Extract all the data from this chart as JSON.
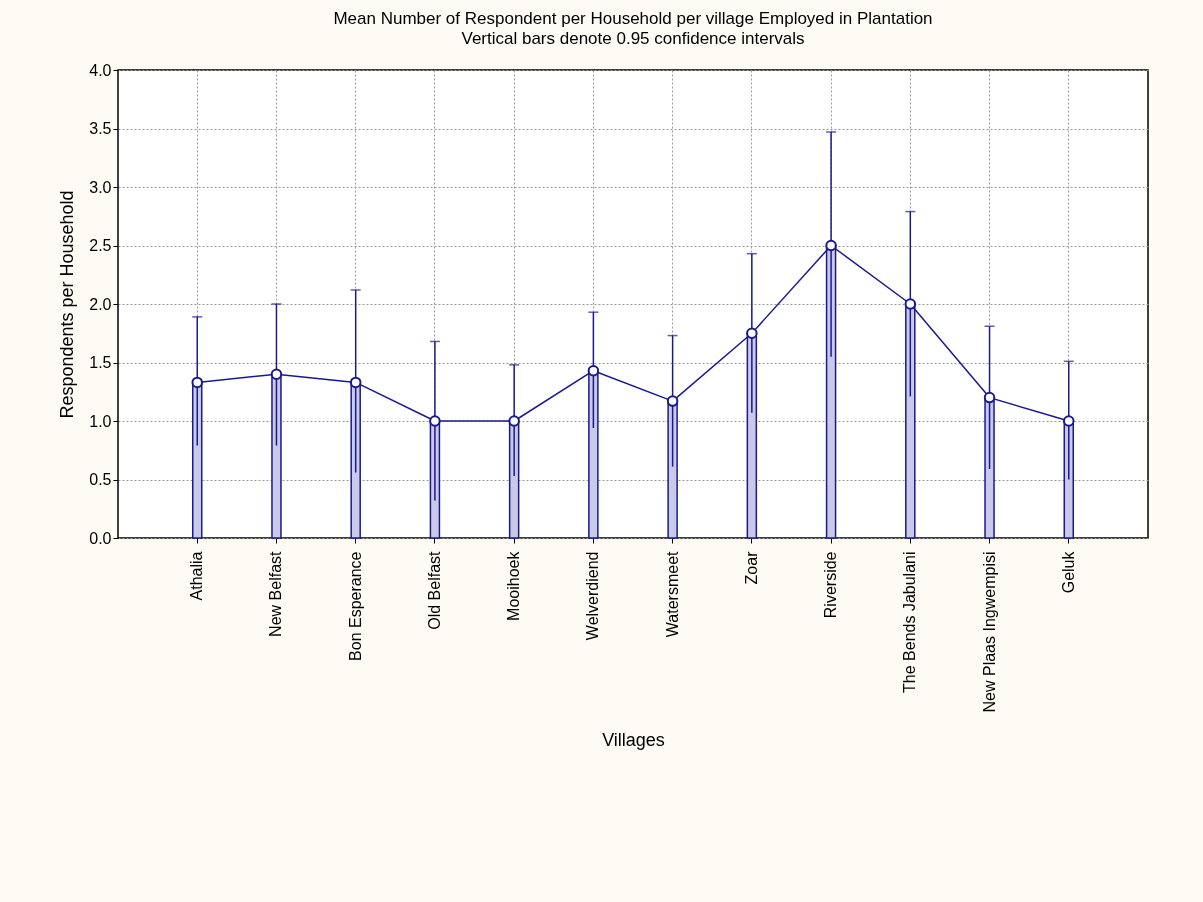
{
  "chart_data": {
    "type": "line",
    "title": "Mean Number of Respondent per Household per village Employed in Plantation",
    "subtitle": "Vertical bars denote 0.95 confidence intervals",
    "xlabel": "Villages",
    "ylabel": "Respondents per Household",
    "categories": [
      "Athalia",
      "New Belfast",
      "Bon Esperance",
      "Old Belfast",
      "Mooihoek",
      "Welverdiend",
      "Watersmeet",
      "Zoar",
      "Riverside",
      "The Bends Jabulani",
      "New Plaas Ingwempisi",
      "Geluk"
    ],
    "series": [
      {
        "type": "bar",
        "color": "#1a1a8c",
        "values": [
          1.33,
          1.4,
          1.33,
          1.0,
          1.0,
          1.43,
          1.17,
          1.75,
          2.5,
          2.0,
          1.2,
          1.0
        ]
      },
      {
        "color": "#1a1a8c",
        "values": [
          1.33,
          1.4,
          1.33,
          1.0,
          1.0,
          1.43,
          1.17,
          1.75,
          2.5,
          2.0,
          1.2,
          1.0
        ],
        "errors": [
          [
            0.79,
            1.89
          ],
          [
            0.79,
            2.0
          ],
          [
            0.56,
            2.12
          ],
          [
            0.32,
            1.68
          ],
          [
            0.53,
            1.48
          ],
          [
            0.94,
            1.93
          ],
          [
            0.61,
            1.73
          ],
          [
            1.07,
            2.43
          ],
          [
            1.55,
            3.47
          ],
          [
            1.21,
            2.79
          ],
          [
            0.59,
            1.81
          ],
          [
            0.5,
            1.51
          ]
        ]
      }
    ],
    "ylim": [
      0,
      4
    ],
    "yticks": [
      {
        "value": 0,
        "label": "0.0"
      },
      {
        "value": 0.5,
        "label": "0.5"
      },
      {
        "value": 1,
        "label": "1.0"
      },
      {
        "value": 1.5,
        "label": "1.5"
      },
      {
        "value": 2,
        "label": "2.0"
      },
      {
        "value": 2.5,
        "label": "2.5"
      },
      {
        "value": 3,
        "label": "3.0"
      },
      {
        "value": 3.5,
        "label": "3.5"
      },
      {
        "value": 4,
        "label": "4.0"
      }
    ],
    "grid": true,
    "marker": "circle",
    "line_style": "solid"
  }
}
